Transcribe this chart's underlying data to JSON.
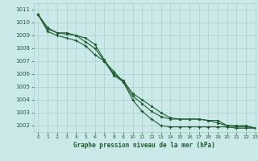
{
  "title": "Graphe pression niveau de la mer (hPa)",
  "bg_color": "#cce9ea",
  "grid_color": "#aacfcf",
  "line_color": "#1a5c2a",
  "xlim": [
    -0.5,
    23
  ],
  "ylim": [
    1001.5,
    1011.5
  ],
  "yticks": [
    1002,
    1003,
    1004,
    1005,
    1006,
    1007,
    1008,
    1009,
    1010,
    1011
  ],
  "xticks": [
    0,
    1,
    2,
    3,
    4,
    5,
    6,
    7,
    8,
    9,
    10,
    11,
    12,
    13,
    14,
    15,
    16,
    17,
    18,
    19,
    20,
    21,
    22,
    23
  ],
  "line1_x": [
    0,
    1,
    2,
    3,
    4,
    5,
    6,
    7,
    8,
    9,
    10,
    11,
    12,
    13,
    14,
    15,
    16,
    17,
    18,
    19,
    20,
    21,
    22,
    23
  ],
  "line1": [
    1010.6,
    1009.6,
    1009.2,
    1009.1,
    1009.0,
    1008.8,
    1008.3,
    1007.1,
    1006.0,
    1005.5,
    1004.5,
    1004.0,
    1003.5,
    1003.0,
    1002.6,
    1002.5,
    1002.5,
    1002.5,
    1002.4,
    1002.4,
    1002.0,
    1002.0,
    1002.0,
    1001.8
  ],
  "line2_x": [
    0,
    1,
    2,
    3,
    4,
    5,
    6,
    7,
    8,
    9,
    10,
    11,
    12,
    13,
    14,
    15,
    16,
    17,
    18,
    19,
    20,
    21,
    22,
    23
  ],
  "line2": [
    1010.6,
    1009.5,
    1009.2,
    1009.2,
    1009.0,
    1008.5,
    1008.0,
    1007.0,
    1005.9,
    1005.4,
    1004.3,
    1003.7,
    1003.1,
    1002.7,
    1002.5,
    1002.5,
    1002.5,
    1002.5,
    1002.4,
    1002.2,
    1002.0,
    1001.9,
    1001.9,
    1001.8
  ],
  "line3_x": [
    0,
    1,
    2,
    3,
    4,
    5,
    6,
    7,
    8,
    9,
    10,
    11,
    12,
    13,
    14,
    15,
    16,
    17,
    18,
    19,
    20,
    21,
    22,
    23
  ],
  "line3": [
    1010.6,
    1009.3,
    1009.0,
    1008.8,
    1008.6,
    1008.2,
    1007.5,
    1007.0,
    1006.2,
    1005.4,
    1004.0,
    1003.1,
    1002.5,
    1002.0,
    1001.9,
    1001.9,
    1001.9,
    1001.9,
    1001.9,
    1001.9,
    1001.9,
    1001.8,
    1001.8,
    1001.8
  ]
}
